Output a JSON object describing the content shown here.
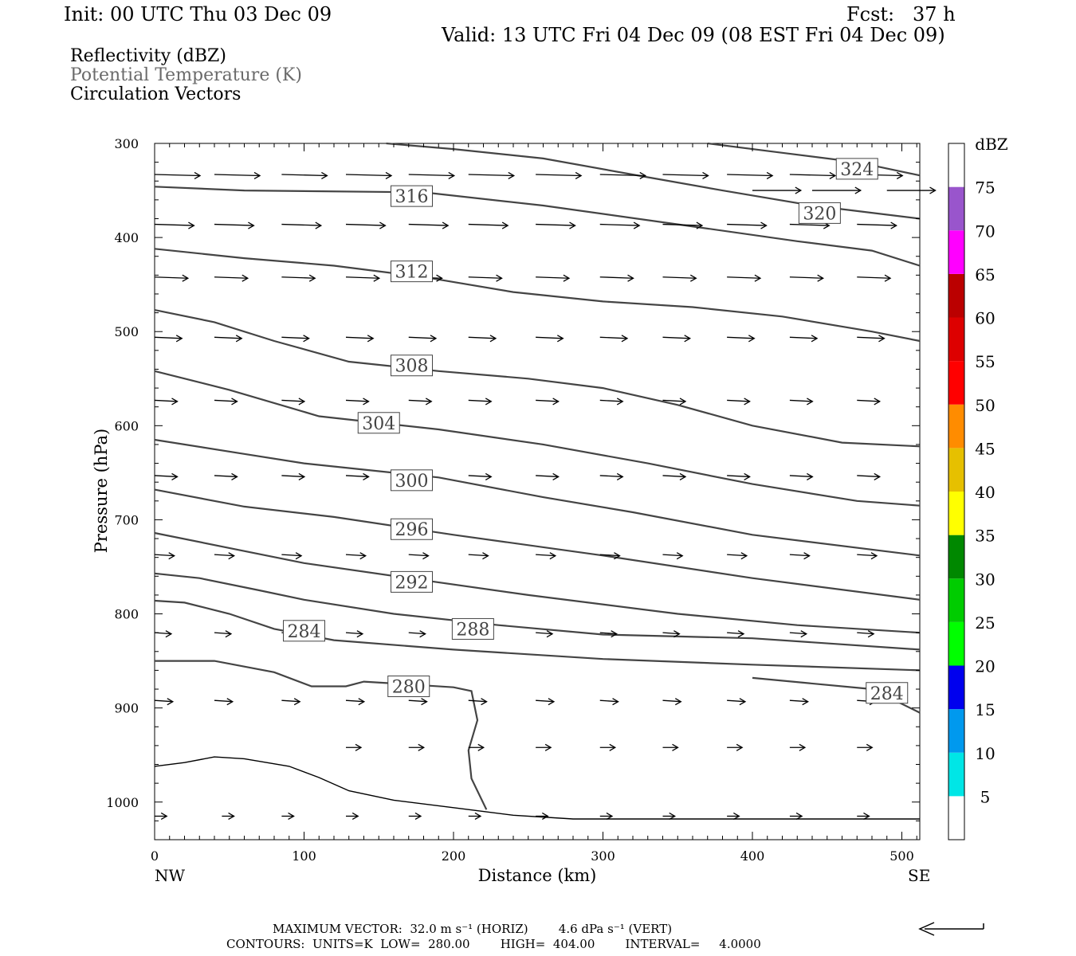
{
  "header": {
    "init": "Init: 00 UTC Thu 03 Dec 09",
    "fcst": "Fcst:   37 h",
    "valid": "Valid: 13 UTC Fri 04 Dec 09 (08 EST Fri 04 Dec 09)"
  },
  "legend": {
    "line1": "Reflectivity (dBZ)",
    "line2": "Potential Temperature (K)",
    "line3": "Circulation Vectors"
  },
  "footer": {
    "line1": "MAXIMUM VECTOR:  32.0 m s⁻¹ (HORIZ)        4.6 dPa s⁻¹ (VERT)",
    "line2": "CONTOURS:  UNITS=K  LOW=  280.00        HIGH=  404.00        INTERVAL=     4.0000"
  },
  "colorbar": {
    "title": "dBZ",
    "labels": [
      "5",
      "10",
      "15",
      "20",
      "25",
      "30",
      "35",
      "40",
      "45",
      "50",
      "55",
      "60",
      "65",
      "70",
      "75"
    ],
    "colors": [
      "#ffffff",
      "#00e6e6",
      "#0099ee",
      "#0000ee",
      "#00ff00",
      "#00cc00",
      "#008800",
      "#ffff00",
      "#e6c000",
      "#ff8c00",
      "#ff0000",
      "#dd0000",
      "#bb0000",
      "#ff00ff",
      "#9955cc",
      "#ffffff"
    ]
  },
  "chart_data": {
    "type": "line",
    "title": "",
    "xlabel": "Distance (km)",
    "ylabel": "Pressure (hPa)",
    "xlim": [
      0,
      512
    ],
    "ylim": [
      1040,
      300
    ],
    "x_ticks": [
      0,
      100,
      200,
      300,
      400,
      500
    ],
    "y_ticks": [
      300,
      400,
      500,
      600,
      700,
      800,
      900,
      1000
    ],
    "x_tick_labels": [
      "0",
      "100",
      "200",
      "300",
      "400",
      "500"
    ],
    "y_tick_labels": [
      "300",
      "400",
      "500",
      "600",
      "700",
      "800",
      "900",
      "1000"
    ],
    "x_end_labels": {
      "left": "NW",
      "right": "SE"
    },
    "contours": [
      {
        "label": "280",
        "points": [
          [
            0,
            850
          ],
          [
            40,
            850
          ],
          [
            80,
            862
          ],
          [
            105,
            877
          ],
          [
            128,
            877
          ],
          [
            140,
            872
          ],
          [
            160,
            874
          ],
          [
            200,
            878
          ],
          [
            212,
            882
          ],
          [
            216,
            913
          ],
          [
            210,
            945
          ],
          [
            212,
            975
          ],
          [
            222,
            1008
          ]
        ],
        "label_pos": [
          170,
          877
        ]
      },
      {
        "label": "284",
        "points": [
          [
            0,
            786
          ],
          [
            20,
            788
          ],
          [
            50,
            800
          ],
          [
            80,
            816
          ],
          [
            120,
            828
          ],
          [
            200,
            838
          ],
          [
            300,
            848
          ],
          [
            400,
            854
          ],
          [
            512,
            860
          ]
        ],
        "label_pos": [
          100,
          818
        ]
      },
      {
        "label": "284",
        "points": [
          [
            400,
            868
          ],
          [
            480,
            880
          ],
          [
            512,
            905
          ]
        ],
        "label_pos": [
          490,
          884
        ]
      },
      {
        "label": "288",
        "points": [
          [
            0,
            757
          ],
          [
            30,
            762
          ],
          [
            70,
            775
          ],
          [
            100,
            785
          ],
          [
            160,
            800
          ],
          [
            230,
            812
          ],
          [
            300,
            822
          ],
          [
            400,
            826
          ],
          [
            512,
            838
          ]
        ],
        "label_pos": [
          213,
          816
        ]
      },
      {
        "label": "292",
        "points": [
          [
            0,
            714
          ],
          [
            50,
            730
          ],
          [
            100,
            746
          ],
          [
            170,
            762
          ],
          [
            250,
            780
          ],
          [
            350,
            800
          ],
          [
            430,
            812
          ],
          [
            512,
            820
          ]
        ],
        "label_pos": [
          172,
          766
        ]
      },
      {
        "label": "296",
        "points": [
          [
            0,
            668
          ],
          [
            60,
            686
          ],
          [
            120,
            697
          ],
          [
            200,
            716
          ],
          [
            300,
            738
          ],
          [
            400,
            762
          ],
          [
            512,
            785
          ]
        ],
        "label_pos": [
          172,
          710
        ]
      },
      {
        "label": "300",
        "points": [
          [
            0,
            615
          ],
          [
            60,
            630
          ],
          [
            100,
            640
          ],
          [
            190,
            655
          ],
          [
            260,
            676
          ],
          [
            320,
            692
          ],
          [
            400,
            716
          ],
          [
            512,
            738
          ]
        ],
        "label_pos": [
          172,
          658
        ]
      },
      {
        "label": "304",
        "points": [
          [
            0,
            542
          ],
          [
            50,
            562
          ],
          [
            110,
            590
          ],
          [
            190,
            604
          ],
          [
            260,
            620
          ],
          [
            330,
            640
          ],
          [
            400,
            662
          ],
          [
            470,
            680
          ],
          [
            512,
            685
          ]
        ],
        "label_pos": [
          150,
          597
        ]
      },
      {
        "label": "308",
        "points": [
          [
            0,
            477
          ],
          [
            40,
            490
          ],
          [
            80,
            510
          ],
          [
            130,
            532
          ],
          [
            190,
            542
          ],
          [
            250,
            550
          ],
          [
            300,
            560
          ],
          [
            350,
            578
          ],
          [
            400,
            600
          ],
          [
            460,
            618
          ],
          [
            512,
            622
          ]
        ],
        "label_pos": [
          172,
          536
        ]
      },
      {
        "label": "312",
        "points": [
          [
            0,
            412
          ],
          [
            60,
            422
          ],
          [
            120,
            430
          ],
          [
            180,
            442
          ],
          [
            240,
            458
          ],
          [
            300,
            468
          ],
          [
            360,
            474
          ],
          [
            420,
            484
          ],
          [
            480,
            500
          ],
          [
            512,
            510
          ]
        ],
        "label_pos": [
          172,
          436
        ]
      },
      {
        "label": "316",
        "points": [
          [
            0,
            346
          ],
          [
            60,
            350
          ],
          [
            180,
            352
          ],
          [
            260,
            366
          ],
          [
            350,
            386
          ],
          [
            430,
            404
          ],
          [
            480,
            414
          ],
          [
            512,
            430
          ]
        ],
        "label_pos": [
          172,
          356
        ]
      },
      {
        "label": "320",
        "points": [
          [
            155,
            300
          ],
          [
            200,
            306
          ],
          [
            260,
            316
          ],
          [
            330,
            336
          ],
          [
            380,
            350
          ],
          [
            440,
            366
          ],
          [
            512,
            380
          ]
        ],
        "label_pos": [
          445,
          374
        ]
      },
      {
        "label": "324",
        "points": [
          [
            370,
            300
          ],
          [
            420,
            310
          ],
          [
            470,
            320
          ],
          [
            512,
            334
          ]
        ],
        "label_pos": [
          470,
          327
        ]
      },
      {
        "label": "",
        "points": [
          [
            0,
            962
          ],
          [
            20,
            958
          ],
          [
            40,
            952
          ],
          [
            60,
            954
          ],
          [
            90,
            962
          ],
          [
            110,
            974
          ],
          [
            130,
            988
          ],
          [
            160,
            998
          ],
          [
            200,
            1006
          ],
          [
            240,
            1014
          ],
          [
            280,
            1018
          ],
          [
            350,
            1018
          ],
          [
            420,
            1018
          ],
          [
            512,
            1018
          ]
        ],
        "label_pos": null
      }
    ],
    "vectors": [
      {
        "y": 333,
        "x": [
          0,
          40,
          85,
          128,
          170,
          210,
          255,
          298,
          340,
          383,
          425,
          470
        ],
        "u": 30,
        "w": 1
      },
      {
        "y": 350,
        "x": [
          400,
          440,
          490
        ],
        "u": 32,
        "w": 0
      },
      {
        "y": 386,
        "x": [
          0,
          40,
          85,
          128,
          170,
          210,
          255,
          298,
          340,
          383,
          425,
          470
        ],
        "u": 26,
        "w": 1
      },
      {
        "y": 442,
        "x": [
          0,
          40,
          85,
          128,
          170,
          210,
          255,
          298,
          340,
          383,
          425,
          470
        ],
        "u": 22,
        "w": 1
      },
      {
        "y": 506,
        "x": [
          0,
          40,
          85,
          128,
          170,
          210,
          255,
          298,
          340,
          383,
          425,
          470
        ],
        "u": 18,
        "w": 1
      },
      {
        "y": 573,
        "x": [
          0,
          40,
          85,
          128,
          170,
          210,
          255,
          298,
          340,
          383,
          425,
          470
        ],
        "u": 15,
        "w": 1
      },
      {
        "y": 653,
        "x": [
          0,
          40,
          85,
          128,
          170,
          210,
          255,
          298,
          340,
          383,
          425,
          470
        ],
        "u": 15,
        "w": 1
      },
      {
        "y": 737,
        "x": [
          0,
          40,
          85,
          128,
          170,
          210,
          255,
          298,
          340,
          383,
          425,
          470
        ],
        "u": 13,
        "w": 1
      },
      {
        "y": 820,
        "x": [
          0,
          40,
          85,
          128,
          170,
          210,
          255,
          298,
          340,
          383,
          425,
          470
        ],
        "u": 11,
        "w": 1
      },
      {
        "y": 892,
        "x": [
          0,
          40,
          85,
          128,
          170,
          210,
          255,
          298,
          340,
          383,
          425,
          470
        ],
        "u": 12,
        "w": 1
      },
      {
        "y": 942,
        "x": [
          128,
          170,
          210,
          255,
          298,
          340,
          383,
          425,
          470
        ],
        "u": 10,
        "w": 0
      },
      {
        "y": 1015,
        "x": [
          0,
          45,
          85,
          128,
          170,
          210,
          255,
          298,
          340,
          383,
          425,
          470
        ],
        "u": 8,
        "w": 0
      }
    ]
  }
}
